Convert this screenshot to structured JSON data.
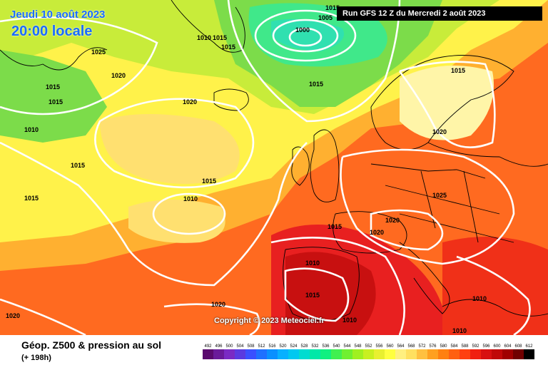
{
  "header": {
    "date": "Jeudi 10 août 2023",
    "time": "20:00 locale",
    "run": "Run GFS 12 Z du Mercredi 2 août 2023"
  },
  "copyright": "Copyright © 2023 Meteociel.fr",
  "legend": {
    "title": "Géop. Z500 & pression au sol",
    "subtitle": "(+ 198h)",
    "ticks": [
      "492",
      "496",
      "500",
      "504",
      "508",
      "512",
      "516",
      "520",
      "524",
      "528",
      "532",
      "536",
      "540",
      "544",
      "548",
      "552",
      "556",
      "560",
      "564",
      "568",
      "572",
      "576",
      "580",
      "584",
      "588",
      "592",
      "596",
      "600",
      "604",
      "608",
      "612"
    ],
    "colors": [
      "#5a0a6e",
      "#6a1a9a",
      "#7a2ac4",
      "#5a3ae0",
      "#3a50ff",
      "#1f70ff",
      "#0a90ff",
      "#08b0ff",
      "#00c8f0",
      "#00dcd0",
      "#00e8a8",
      "#10f080",
      "#40f050",
      "#70f030",
      "#a0f020",
      "#c8f020",
      "#e8f030",
      "#ffff40",
      "#fff080",
      "#ffe060",
      "#ffc040",
      "#ffa020",
      "#ff8010",
      "#ff6010",
      "#ff4010",
      "#f02010",
      "#d81010",
      "#c00808",
      "#a00000",
      "#700000",
      "#000000"
    ]
  },
  "isobars": [
    "1015",
    "1005",
    "1010",
    "1000",
    "1015",
    "1015",
    "1025",
    "1020",
    "1015",
    "1015",
    "1015",
    "1020",
    "1010",
    "1015",
    "1010",
    "1015",
    "1015",
    "1020",
    "1020",
    "1025",
    "1015",
    "1020",
    "1010",
    "1015",
    "1020",
    "1010",
    "1015",
    "1010",
    "1010",
    "1020"
  ],
  "map": {
    "field_colors": [
      "#7cdc4a",
      "#c8ec3a",
      "#fff24a",
      "#ffe070",
      "#ffb030",
      "#ff8020",
      "#ff4a20",
      "#e81818",
      "#c81010"
    ],
    "isobar_color": "#ffffff",
    "coast_color": "#000000"
  }
}
